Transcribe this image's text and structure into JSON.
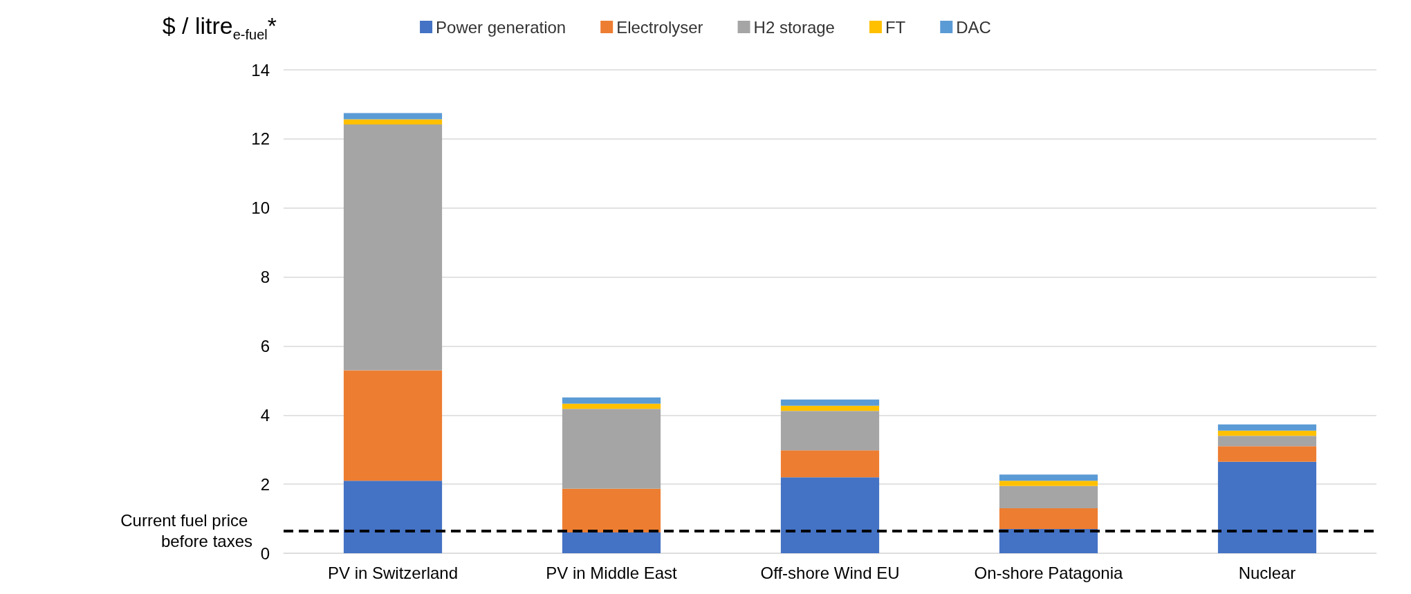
{
  "chart_data": {
    "type": "bar",
    "stacked": true,
    "ylabel": "$ / litre$_{e-fuel}$*",
    "categories": [
      "PV in Switzerland",
      "PV in Middle East",
      "Off-shore Wind EU",
      "On-shore Patagonia",
      "Nuclear"
    ],
    "series": [
      {
        "name": "Power generation",
        "color": "#4472c4",
        "values": [
          2.1,
          0.6,
          2.2,
          0.7,
          2.65
        ]
      },
      {
        "name": "Electrolyser",
        "color": "#ed7d31",
        "values": [
          3.2,
          1.27,
          0.78,
          0.6,
          0.45
        ]
      },
      {
        "name": "H2 storage",
        "color": "#a5a5a5",
        "values": [
          7.12,
          2.31,
          1.14,
          0.65,
          0.3
        ]
      },
      {
        "name": "FT",
        "color": "#ffc000",
        "values": [
          0.15,
          0.15,
          0.15,
          0.15,
          0.15
        ]
      },
      {
        "name": "DAC",
        "color": "#5b9bd5",
        "values": [
          0.18,
          0.18,
          0.18,
          0.18,
          0.18
        ]
      }
    ],
    "ylim": [
      0,
      14
    ],
    "yticks": [
      0,
      2,
      4,
      6,
      8,
      10,
      12,
      14
    ],
    "grid": "y",
    "legend": "top",
    "ref_lines": [
      {
        "axis": "y",
        "value": 0.65,
        "label": "Current fuel price before taxes",
        "color": "#000000",
        "line_style": "dashed"
      }
    ]
  }
}
